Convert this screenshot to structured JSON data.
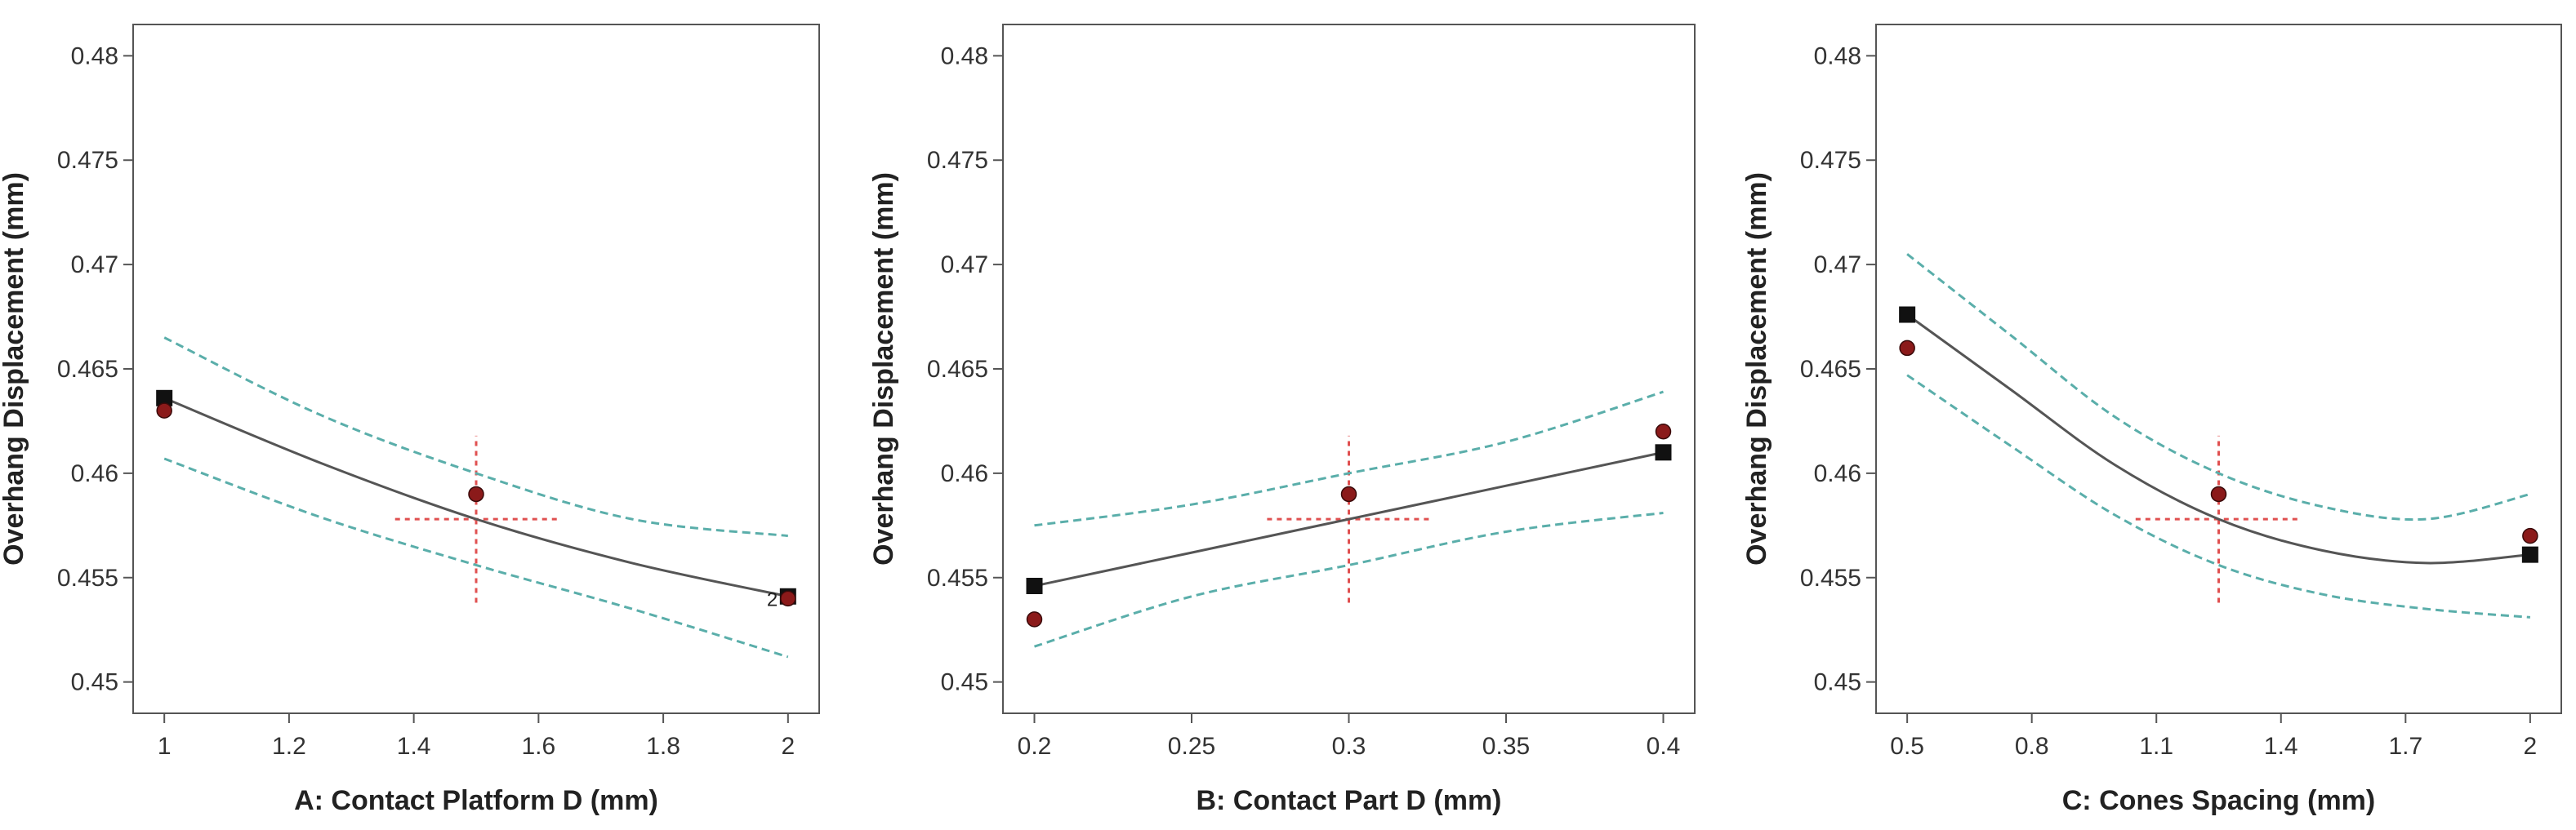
{
  "chart_data": [
    {
      "type": "line",
      "xlabel": "A: Contact Platform D (mm)",
      "ylabel": "Overhang Displacement (mm)",
      "xlim": [
        0.95,
        2.05
      ],
      "ylim": [
        0.4485,
        0.4815
      ],
      "xticks": [
        1,
        1.2,
        1.4,
        1.6,
        1.8,
        2
      ],
      "xtick_labels": [
        "1",
        "1.2",
        "1.4",
        "1.6",
        "1.8",
        "2"
      ],
      "yticks": [
        0.45,
        0.455,
        0.46,
        0.465,
        0.47,
        0.475,
        0.48
      ],
      "ytick_labels": [
        "0.45",
        "0.455",
        "0.46",
        "0.465",
        "0.47",
        "0.475",
        "0.48"
      ],
      "grid": false,
      "series": [
        {
          "role": "prediction",
          "color": "#555555",
          "x": [
            1,
            1.25,
            1.5,
            1.75,
            2
          ],
          "y": [
            0.4636,
            0.4605,
            0.4578,
            0.4557,
            0.4541
          ]
        },
        {
          "role": "ci-upper",
          "color": "#5aaeaa",
          "x": [
            1,
            1.25,
            1.5,
            1.75,
            2
          ],
          "y": [
            0.4665,
            0.4628,
            0.46,
            0.4578,
            0.457
          ]
        },
        {
          "role": "ci-lower",
          "color": "#5aaeaa",
          "x": [
            1,
            1.25,
            1.5,
            1.75,
            2
          ],
          "y": [
            0.4607,
            0.4579,
            0.4556,
            0.4535,
            0.4512
          ]
        }
      ],
      "design_points": [
        {
          "x": 1,
          "y": 0.4636,
          "shape": "square",
          "color": "#111111"
        },
        {
          "x": 2,
          "y": 0.4541,
          "shape": "square",
          "color": "#111111"
        },
        {
          "x": 1,
          "y": 0.463,
          "shape": "circle",
          "color": "#8b1a1a"
        },
        {
          "x": 1.5,
          "y": 0.459,
          "shape": "circle",
          "color": "#8b1a1a"
        },
        {
          "x": 2,
          "y": 0.454,
          "shape": "circle",
          "color": "#8b1a1a",
          "label": "2"
        }
      ],
      "center_cross": {
        "x": 1.5,
        "y": 0.4578,
        "dx": 0.13,
        "dy": 0.004,
        "color": "#e05050"
      }
    },
    {
      "type": "line",
      "xlabel": "B: Contact Part D (mm)",
      "ylabel": "Overhang Displacement (mm)",
      "xlim": [
        0.19,
        0.41
      ],
      "ylim": [
        0.4485,
        0.4815
      ],
      "xticks": [
        0.2,
        0.25,
        0.3,
        0.35,
        0.4
      ],
      "xtick_labels": [
        "0.2",
        "0.25",
        "0.3",
        "0.35",
        "0.4"
      ],
      "yticks": [
        0.45,
        0.455,
        0.46,
        0.465,
        0.47,
        0.475,
        0.48
      ],
      "ytick_labels": [
        "0.45",
        "0.455",
        "0.46",
        "0.465",
        "0.47",
        "0.475",
        "0.48"
      ],
      "grid": false,
      "series": [
        {
          "role": "prediction",
          "color": "#555555",
          "x": [
            0.2,
            0.25,
            0.3,
            0.35,
            0.4
          ],
          "y": [
            0.4546,
            0.4562,
            0.4578,
            0.4594,
            0.461
          ]
        },
        {
          "role": "ci-upper",
          "color": "#5aaeaa",
          "x": [
            0.2,
            0.25,
            0.3,
            0.35,
            0.4
          ],
          "y": [
            0.4575,
            0.4585,
            0.46,
            0.4615,
            0.4639
          ]
        },
        {
          "role": "ci-lower",
          "color": "#5aaeaa",
          "x": [
            0.2,
            0.25,
            0.3,
            0.35,
            0.4
          ],
          "y": [
            0.4517,
            0.4541,
            0.4556,
            0.4572,
            0.4581
          ]
        }
      ],
      "design_points": [
        {
          "x": 0.2,
          "y": 0.4546,
          "shape": "square",
          "color": "#111111"
        },
        {
          "x": 0.4,
          "y": 0.461,
          "shape": "square",
          "color": "#111111"
        },
        {
          "x": 0.2,
          "y": 0.453,
          "shape": "circle",
          "color": "#8b1a1a"
        },
        {
          "x": 0.3,
          "y": 0.459,
          "shape": "circle",
          "color": "#8b1a1a"
        },
        {
          "x": 0.4,
          "y": 0.462,
          "shape": "circle",
          "color": "#8b1a1a"
        }
      ],
      "center_cross": {
        "x": 0.3,
        "y": 0.4578,
        "dx": 0.026,
        "dy": 0.004,
        "color": "#e05050"
      }
    },
    {
      "type": "line",
      "xlabel": "C: Cones Spacing (mm)",
      "ylabel": "Overhang Displacement (mm)",
      "xlim": [
        0.425,
        2.075
      ],
      "ylim": [
        0.4485,
        0.4815
      ],
      "xticks": [
        0.5,
        0.8,
        1.1,
        1.4,
        1.7,
        2
      ],
      "xtick_labels": [
        "0.5",
        "0.8",
        "1.1",
        "1.4",
        "1.7",
        "2"
      ],
      "yticks": [
        0.45,
        0.455,
        0.46,
        0.465,
        0.47,
        0.475,
        0.48
      ],
      "ytick_labels": [
        "0.45",
        "0.455",
        "0.46",
        "0.465",
        "0.47",
        "0.475",
        "0.48"
      ],
      "grid": false,
      "series": [
        {
          "role": "prediction",
          "color": "#555555",
          "x": [
            0.5,
            0.75,
            1.0,
            1.25,
            1.5,
            1.75,
            2.0
          ],
          "y": [
            0.4676,
            0.464,
            0.4604,
            0.4578,
            0.4563,
            0.4557,
            0.4561
          ]
        },
        {
          "role": "ci-upper",
          "color": "#5aaeaa",
          "x": [
            0.5,
            0.75,
            1.0,
            1.25,
            1.5,
            1.75,
            2.0
          ],
          "y": [
            0.4705,
            0.4666,
            0.4627,
            0.46,
            0.4584,
            0.4578,
            0.459
          ]
        },
        {
          "role": "ci-lower",
          "color": "#5aaeaa",
          "x": [
            0.5,
            0.75,
            1.0,
            1.25,
            1.5,
            1.75,
            2.0
          ],
          "y": [
            0.4647,
            0.4613,
            0.458,
            0.4556,
            0.4542,
            0.4535,
            0.4531
          ]
        }
      ],
      "design_points": [
        {
          "x": 0.5,
          "y": 0.4676,
          "shape": "square",
          "color": "#111111"
        },
        {
          "x": 2.0,
          "y": 0.4561,
          "shape": "square",
          "color": "#111111"
        },
        {
          "x": 0.5,
          "y": 0.466,
          "shape": "circle",
          "color": "#8b1a1a"
        },
        {
          "x": 1.25,
          "y": 0.459,
          "shape": "circle",
          "color": "#8b1a1a"
        },
        {
          "x": 2.0,
          "y": 0.457,
          "shape": "circle",
          "color": "#8b1a1a"
        }
      ],
      "center_cross": {
        "x": 1.25,
        "y": 0.4578,
        "dx": 0.2,
        "dy": 0.004,
        "color": "#e05050"
      }
    }
  ]
}
